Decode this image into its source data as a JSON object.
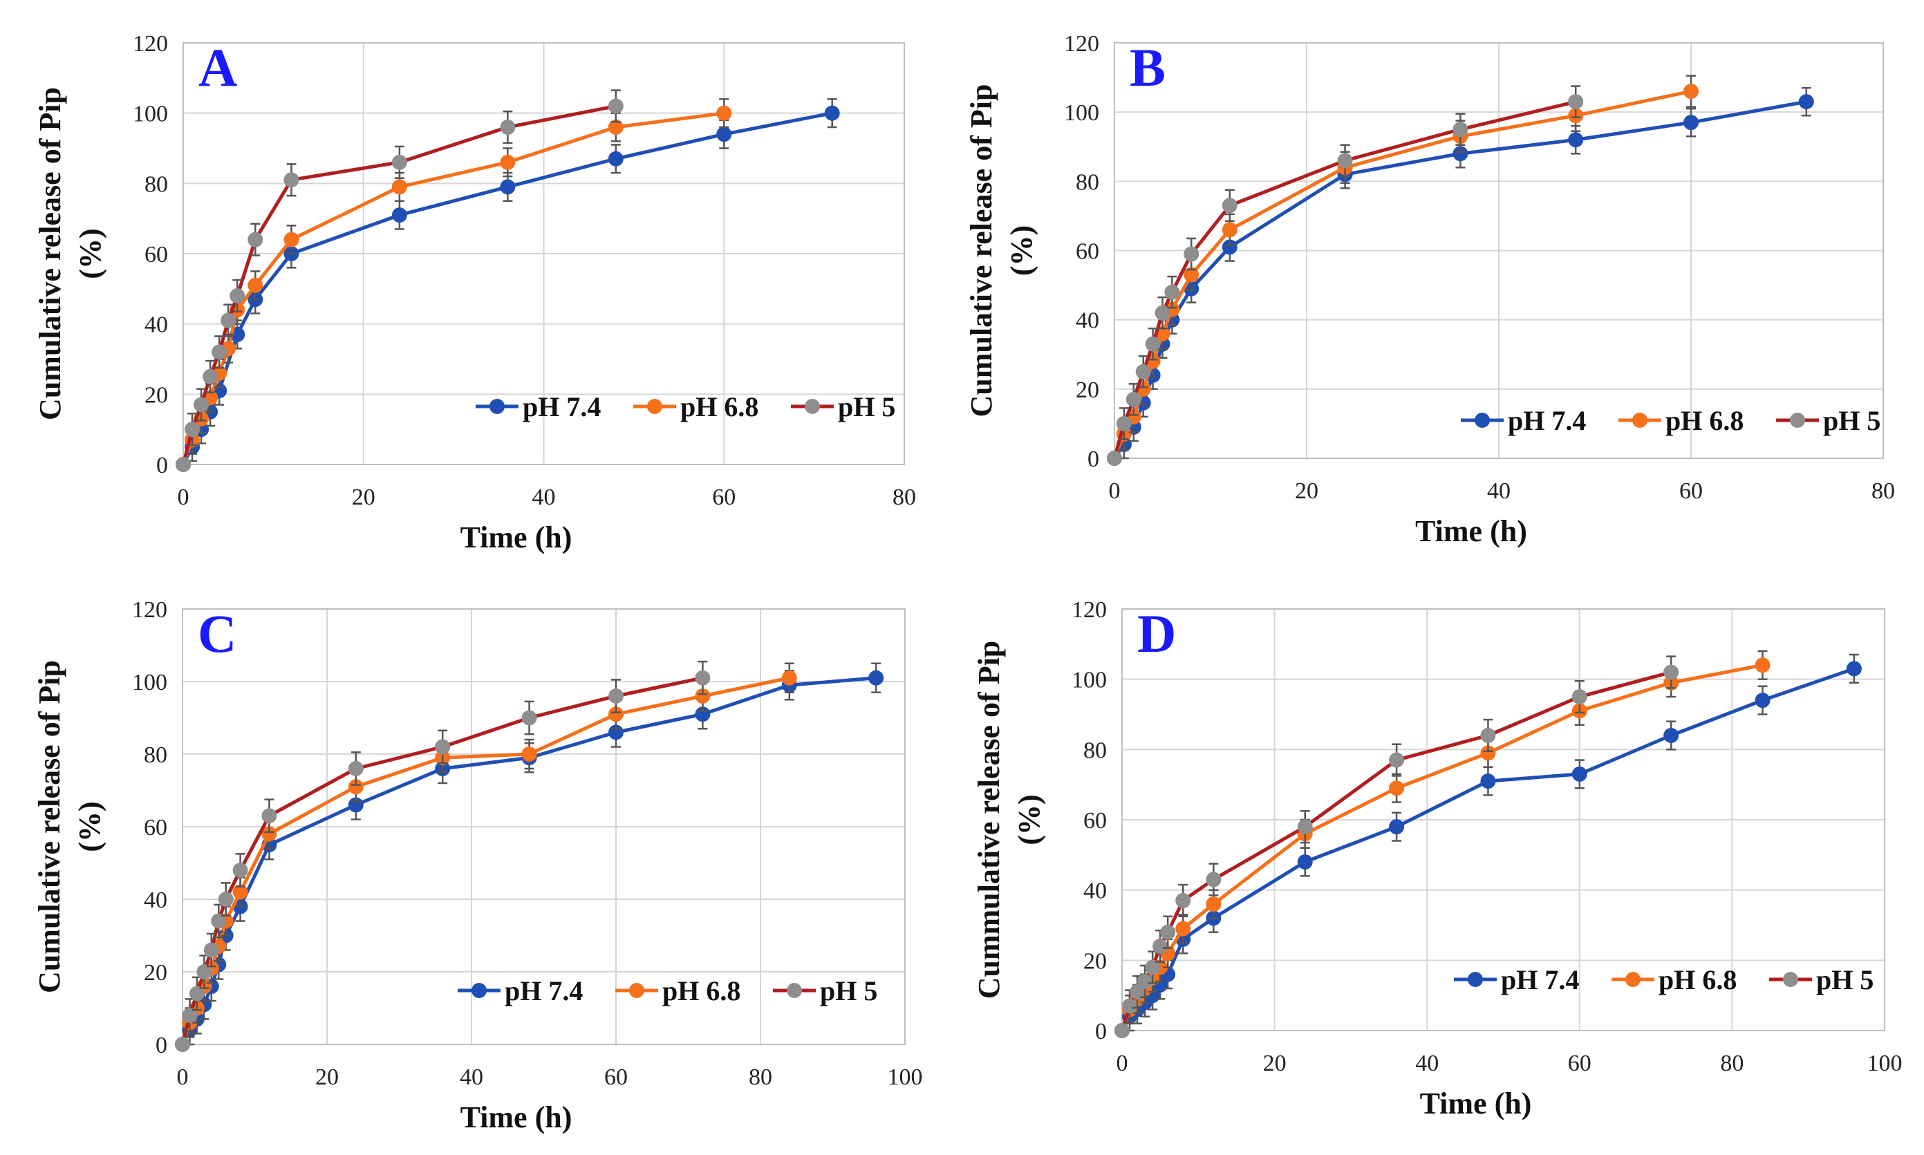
{
  "colors": {
    "pH 7.4": "#1f4fb4",
    "pH 6.8": "#f5701b",
    "pH 5_line": "#b01e1e",
    "pH 5_marker": "#8e8e8e",
    "error": "#555555"
  },
  "chart_data": [
    {
      "type": "line",
      "letter": "A",
      "xlabel": "Time (h)",
      "ylabel": [
        "Cumulative release of Pip",
        "(%)"
      ],
      "xlim": [
        0,
        80
      ],
      "ylim": [
        0,
        120
      ],
      "xticks": [
        0,
        20,
        40,
        60,
        80
      ],
      "yticks": [
        0,
        20,
        40,
        60,
        80,
        100,
        120
      ],
      "legend": [
        "pH 7.4",
        "pH 6.8",
        "pH 5"
      ],
      "series": [
        {
          "name": "pH 7.4",
          "x": [
            0,
            1,
            2,
            3,
            4,
            6,
            8,
            12,
            24,
            36,
            48,
            60,
            72
          ],
          "y": [
            0,
            5,
            10,
            15,
            21,
            37,
            47,
            60,
            71,
            79,
            87,
            94,
            100
          ],
          "err": 4
        },
        {
          "name": "pH 6.8",
          "x": [
            0,
            1,
            2,
            3,
            4,
            5,
            6,
            8,
            12,
            24,
            36,
            48,
            60
          ],
          "y": [
            0,
            7,
            13,
            19,
            26,
            33,
            44,
            51,
            64,
            79,
            86,
            96,
            100
          ],
          "err": 4
        },
        {
          "name": "pH 5",
          "x": [
            0,
            1,
            2,
            3,
            4,
            5,
            6,
            8,
            12,
            24,
            36,
            48
          ],
          "y": [
            0,
            10,
            17,
            25,
            32,
            41,
            48,
            64,
            81,
            86,
            96,
            102
          ],
          "err": 4.5
        }
      ]
    },
    {
      "type": "line",
      "letter": "B",
      "xlabel": "Time (h)",
      "ylabel": [
        "Cumulative release of Pip",
        "(%)"
      ],
      "xlim": [
        0,
        80
      ],
      "ylim": [
        0,
        120
      ],
      "xticks": [
        0,
        20,
        40,
        60,
        80
      ],
      "yticks": [
        0,
        20,
        40,
        60,
        80,
        100,
        120
      ],
      "legend": [
        "pH 7.4",
        "pH 6.8",
        "pH 5"
      ],
      "series": [
        {
          "name": "pH 7.4",
          "x": [
            0,
            1,
            2,
            3,
            4,
            5,
            6,
            8,
            12,
            24,
            36,
            48,
            60,
            72
          ],
          "y": [
            0,
            4,
            9,
            16,
            24,
            33,
            40,
            49,
            61,
            82,
            88,
            92,
            97,
            103
          ],
          "err": 4
        },
        {
          "name": "pH 6.8",
          "x": [
            0,
            1,
            2,
            3,
            4,
            5,
            6,
            8,
            12,
            24,
            36,
            48,
            60
          ],
          "y": [
            0,
            7,
            12,
            20,
            28,
            36,
            43,
            53,
            66,
            84,
            93,
            99,
            106
          ],
          "err": 4.5
        },
        {
          "name": "pH 5",
          "x": [
            0,
            1,
            2,
            3,
            4,
            5,
            6,
            8,
            12,
            24,
            36,
            48
          ],
          "y": [
            0,
            10,
            17,
            25,
            33,
            42,
            48,
            59,
            73,
            86,
            95,
            103
          ],
          "err": 4.5
        }
      ]
    },
    {
      "type": "line",
      "letter": "C",
      "xlabel": "Time (h)",
      "ylabel": [
        "Cumulative release of Pip",
        "(%)"
      ],
      "xlim": [
        0,
        100
      ],
      "ylim": [
        0,
        120
      ],
      "xticks": [
        0,
        20,
        40,
        60,
        80,
        100
      ],
      "yticks": [
        0,
        20,
        40,
        60,
        80,
        100,
        120
      ],
      "legend": [
        "pH 7.4",
        "pH 6.8",
        "pH 5"
      ],
      "series": [
        {
          "name": "pH 7.4",
          "x": [
            0,
            1,
            2,
            3,
            4,
            5,
            6,
            8,
            12,
            24,
            36,
            48,
            60,
            72,
            84,
            96
          ],
          "y": [
            0,
            4,
            7,
            11,
            16,
            22,
            30,
            38,
            55,
            66,
            76,
            79,
            86,
            91,
            99,
            101
          ],
          "err": 4
        },
        {
          "name": "pH 6.8",
          "x": [
            0,
            1,
            2,
            3,
            4,
            5,
            6,
            8,
            12,
            24,
            36,
            48,
            60,
            72,
            84
          ],
          "y": [
            0,
            6,
            10,
            16,
            21,
            27,
            34,
            42,
            58,
            71,
            79,
            80,
            91,
            96,
            101
          ],
          "err": 4
        },
        {
          "name": "pH 5",
          "x": [
            0,
            1,
            2,
            3,
            4,
            5,
            6,
            8,
            12,
            24,
            36,
            48,
            60,
            72
          ],
          "y": [
            0,
            8,
            14,
            20,
            26,
            34,
            40,
            48,
            63,
            76,
            82,
            90,
            96,
            101
          ],
          "err": 4.5
        }
      ]
    },
    {
      "type": "line",
      "letter": "D",
      "xlabel": "Time (h)",
      "ylabel": [
        "Cummulative release of Pip",
        "(%)"
      ],
      "xlim": [
        0,
        100
      ],
      "ylim": [
        0,
        120
      ],
      "xticks": [
        0,
        20,
        40,
        60,
        80,
        100
      ],
      "yticks": [
        0,
        20,
        40,
        60,
        80,
        100,
        120
      ],
      "legend": [
        "pH 7.4",
        "pH 6.8",
        "pH 5"
      ],
      "series": [
        {
          "name": "pH 7.4",
          "x": [
            0,
            1,
            2,
            3,
            4,
            5,
            6,
            8,
            12,
            24,
            36,
            48,
            60,
            72,
            84,
            96
          ],
          "y": [
            0,
            4,
            6,
            8,
            10,
            13,
            16,
            26,
            32,
            48,
            58,
            71,
            73,
            84,
            94,
            103
          ],
          "err": 4
        },
        {
          "name": "pH 6.8",
          "x": [
            0,
            1,
            2,
            3,
            4,
            5,
            6,
            8,
            12,
            24,
            36,
            48,
            60,
            72,
            84
          ],
          "y": [
            0,
            6,
            9,
            12,
            15,
            18,
            22,
            29,
            36,
            56,
            69,
            79,
            91,
            99,
            104
          ],
          "err": 4
        },
        {
          "name": "pH 5",
          "x": [
            0,
            1,
            2,
            3,
            4,
            5,
            6,
            8,
            12,
            24,
            36,
            48,
            60,
            72
          ],
          "y": [
            0,
            7,
            11,
            14,
            18,
            24,
            28,
            37,
            43,
            58,
            77,
            84,
            95,
            102
          ],
          "err": 4.5
        }
      ]
    }
  ]
}
